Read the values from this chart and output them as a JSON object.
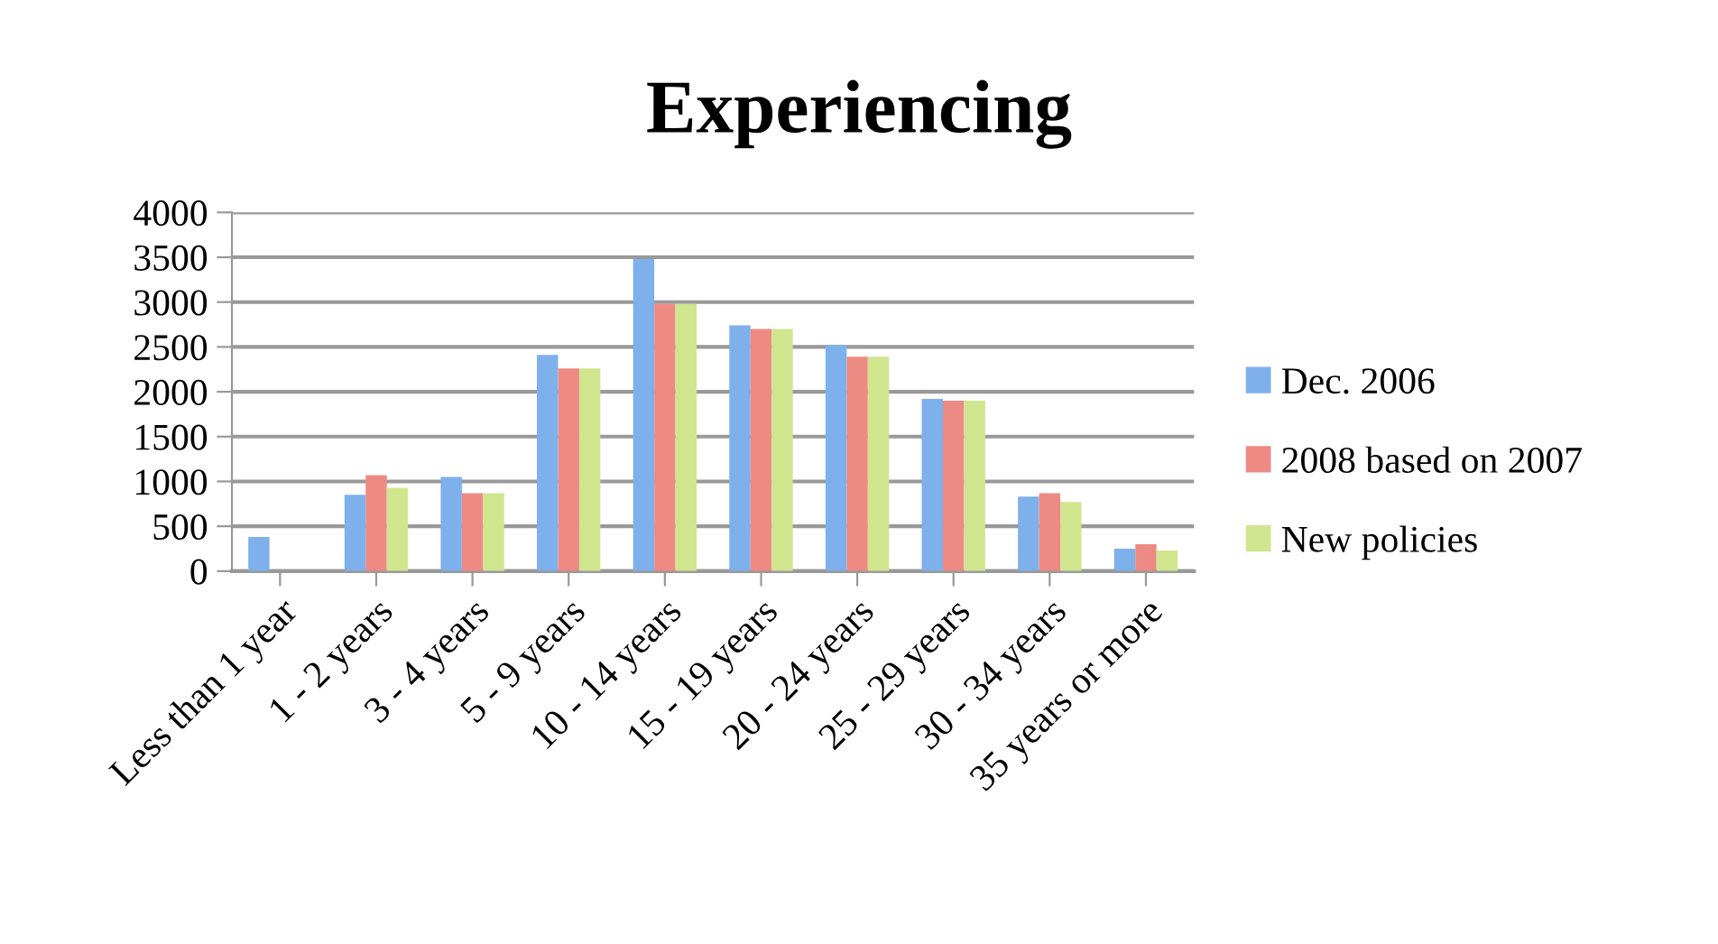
{
  "chart_data": {
    "type": "bar",
    "title": "Experiencing",
    "categories": [
      "Less than 1 year",
      "1 - 2 years",
      "3 - 4 years",
      "5 - 9 years",
      "10 - 14 years",
      "15 - 19 years",
      "20 - 24 years",
      "25 - 29 years",
      "30 - 34 years",
      "35 years or more"
    ],
    "series": [
      {
        "name": "Dec. 2006",
        "color": "#7eb0ec",
        "values": [
          380,
          850,
          1050,
          2410,
          3480,
          2740,
          2520,
          1920,
          830,
          250
        ]
      },
      {
        "name": "2008 based on 2007",
        "color": "#ee8a84",
        "values": [
          null,
          1070,
          870,
          2260,
          2980,
          2700,
          2390,
          1900,
          870,
          300
        ]
      },
      {
        "name": "New policies",
        "color": "#cfe68e",
        "values": [
          null,
          930,
          870,
          2260,
          2980,
          2700,
          2390,
          1900,
          770,
          230
        ]
      }
    ],
    "ylim": [
      0,
      4000
    ],
    "yticks": [
      0,
      500,
      1000,
      1500,
      2000,
      2500,
      3000,
      3500,
      4000
    ],
    "grid": "y",
    "legend": "right"
  }
}
